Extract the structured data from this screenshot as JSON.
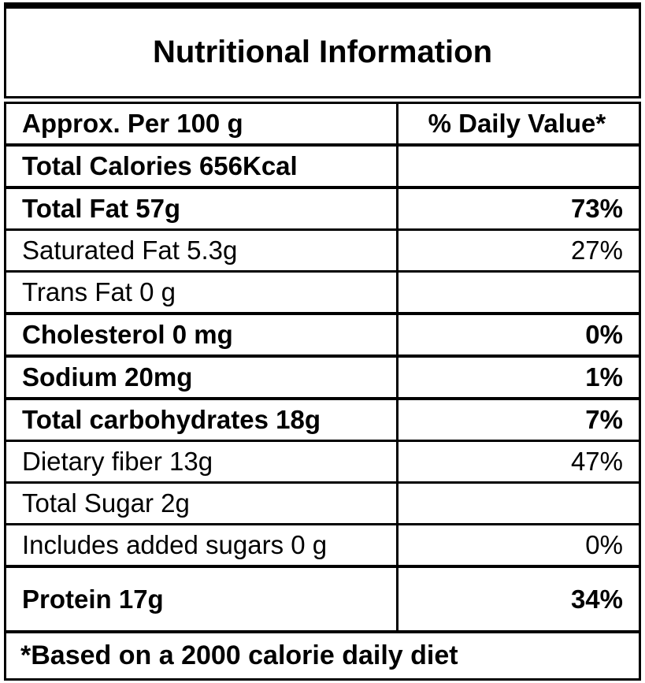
{
  "title": "Nutritional Information",
  "colors": {
    "border": "#000000",
    "background": "#ffffff",
    "text": "#000000"
  },
  "table": {
    "header": {
      "serving_column": "Approx. Per 100 g",
      "daily_value_column": "% Daily Value*"
    },
    "rows": [
      {
        "label": "Total Calories 656Kcal",
        "value": "",
        "bold": true
      },
      {
        "label": "Total Fat 57g",
        "value": "73%",
        "bold": true
      },
      {
        "label": "Saturated Fat 5.3g",
        "value": "27%",
        "bold": false
      },
      {
        "label": "Trans Fat 0 g",
        "value": "",
        "bold": false
      },
      {
        "label": "Cholesterol 0 mg",
        "value": "0%",
        "bold": true
      },
      {
        "label": "Sodium 20mg",
        "value": "1%",
        "bold": true
      },
      {
        "label": "Total carbohydrates 18g",
        "value": "7%",
        "bold": true
      },
      {
        "label": "Dietary fiber 13g",
        "value": "47%",
        "bold": false
      },
      {
        "label": "Total Sugar 2g",
        "value": "",
        "bold": false
      },
      {
        "label": "Includes added sugars 0 g",
        "value": "0%",
        "bold": false
      },
      {
        "label": "Protein 17g",
        "value": "34%",
        "bold": true,
        "tall": true
      }
    ],
    "footer_note": "*Based on a 2000 calorie daily diet"
  }
}
